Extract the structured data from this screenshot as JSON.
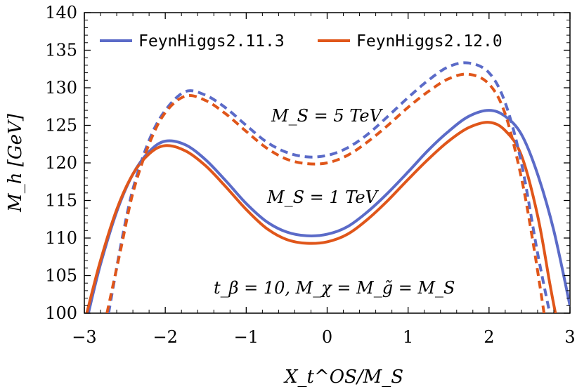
{
  "chart_data": {
    "type": "line",
    "xlabel": "X_t^OS/M_S",
    "ylabel": "M_h [GeV]",
    "xlim": [
      -3,
      3
    ],
    "ylim": [
      100,
      140
    ],
    "xticks": [
      "−3",
      "−2",
      "−1",
      "0",
      "1",
      "2",
      "3"
    ],
    "yticks": [
      "100",
      "105",
      "110",
      "115",
      "120",
      "125",
      "130",
      "135",
      "140"
    ],
    "legend_position": "top",
    "annotations": [
      "M_S = 5 TeV",
      "M_S = 1 TeV",
      "t_β = 10, M_χ = M_g̃ = M_S"
    ],
    "colors": {
      "feynhiggs_2_11_3": "#5b6bc8",
      "feynhiggs_2_12_0": "#e0561a"
    },
    "legend": [
      "FeynHiggs2.11.3",
      "FeynHiggs2.12.0"
    ],
    "x": [
      -3.0,
      -2.75,
      -2.5,
      -2.25,
      -2.0,
      -1.75,
      -1.5,
      -1.25,
      -1.0,
      -0.75,
      -0.5,
      -0.25,
      0.0,
      0.25,
      0.5,
      0.75,
      1.0,
      1.25,
      1.5,
      1.75,
      2.0,
      2.25,
      2.5,
      2.75,
      3.0
    ],
    "series": [
      {
        "name": "FeynHiggs2.11.3",
        "group": "M_S = 1 TeV",
        "style": "solid",
        "color": "#5b6bc8",
        "points": [
          [
            -2.95,
            100
          ],
          [
            -2.8,
            106.5
          ],
          [
            -2.6,
            113.5
          ],
          [
            -2.4,
            118.5
          ],
          [
            -2.2,
            121.5
          ],
          [
            -2.0,
            122.9
          ],
          [
            -1.75,
            122.4
          ],
          [
            -1.5,
            120.4
          ],
          [
            -1.25,
            117.6
          ],
          [
            -1.0,
            114.6
          ],
          [
            -0.75,
            112.2
          ],
          [
            -0.5,
            110.8
          ],
          [
            -0.25,
            110.3
          ],
          [
            0.0,
            110.5
          ],
          [
            0.25,
            111.5
          ],
          [
            0.5,
            113.5
          ],
          [
            0.75,
            116.0
          ],
          [
            1.0,
            118.8
          ],
          [
            1.25,
            121.7
          ],
          [
            1.5,
            124.2
          ],
          [
            1.75,
            126.2
          ],
          [
            2.0,
            127.0
          ],
          [
            2.2,
            126.2
          ],
          [
            2.4,
            123.8
          ],
          [
            2.6,
            118.5
          ],
          [
            2.8,
            111.0
          ],
          [
            3.0,
            101.0
          ]
        ]
      },
      {
        "name": "FeynHiggs2.12.0",
        "group": "M_S = 1 TeV",
        "style": "solid",
        "color": "#e0561a",
        "points": [
          [
            -2.97,
            100
          ],
          [
            -2.8,
            107.0
          ],
          [
            -2.6,
            113.8
          ],
          [
            -2.4,
            118.5
          ],
          [
            -2.2,
            121.2
          ],
          [
            -2.0,
            122.3
          ],
          [
            -1.75,
            121.6
          ],
          [
            -1.5,
            119.6
          ],
          [
            -1.25,
            116.8
          ],
          [
            -1.0,
            113.8
          ],
          [
            -0.75,
            111.3
          ],
          [
            -0.5,
            109.8
          ],
          [
            -0.25,
            109.3
          ],
          [
            0.0,
            109.5
          ],
          [
            0.25,
            110.5
          ],
          [
            0.5,
            112.5
          ],
          [
            0.75,
            115.0
          ],
          [
            1.0,
            117.8
          ],
          [
            1.25,
            120.5
          ],
          [
            1.5,
            122.9
          ],
          [
            1.75,
            124.7
          ],
          [
            2.0,
            125.4
          ],
          [
            2.2,
            124.3
          ],
          [
            2.4,
            121.0
          ],
          [
            2.6,
            113.0
          ],
          [
            2.75,
            104.0
          ],
          [
            2.82,
            100
          ]
        ]
      },
      {
        "name": "FeynHiggs2.11.3",
        "group": "M_S = 5 TeV",
        "style": "dashed",
        "color": "#5b6bc8",
        "points": [
          [
            -2.7,
            100
          ],
          [
            -2.55,
            109.0
          ],
          [
            -2.4,
            116.5
          ],
          [
            -2.2,
            123.0
          ],
          [
            -2.0,
            127.0
          ],
          [
            -1.75,
            129.5
          ],
          [
            -1.5,
            129.0
          ],
          [
            -1.25,
            127.3
          ],
          [
            -1.0,
            125.0
          ],
          [
            -0.75,
            122.8
          ],
          [
            -0.5,
            121.4
          ],
          [
            -0.25,
            120.8
          ],
          [
            0.0,
            121.0
          ],
          [
            0.25,
            122.0
          ],
          [
            0.5,
            123.8
          ],
          [
            0.75,
            126.2
          ],
          [
            1.0,
            128.7
          ],
          [
            1.25,
            131.0
          ],
          [
            1.5,
            132.8
          ],
          [
            1.75,
            133.3
          ],
          [
            2.0,
            132.0
          ],
          [
            2.2,
            128.0
          ],
          [
            2.4,
            120.0
          ],
          [
            2.6,
            108.0
          ],
          [
            2.75,
            100
          ]
        ]
      },
      {
        "name": "FeynHiggs2.12.0",
        "group": "M_S = 5 TeV",
        "style": "dashed",
        "color": "#e0561a",
        "points": [
          [
            -2.72,
            100
          ],
          [
            -2.55,
            108.5
          ],
          [
            -2.4,
            116.0
          ],
          [
            -2.2,
            122.5
          ],
          [
            -2.0,
            126.7
          ],
          [
            -1.75,
            128.9
          ],
          [
            -1.5,
            128.3
          ],
          [
            -1.25,
            126.5
          ],
          [
            -1.0,
            124.2
          ],
          [
            -0.75,
            122.0
          ],
          [
            -0.5,
            120.5
          ],
          [
            -0.25,
            119.9
          ],
          [
            0.0,
            120.0
          ],
          [
            0.25,
            121.0
          ],
          [
            0.5,
            122.8
          ],
          [
            0.75,
            125.0
          ],
          [
            1.0,
            127.4
          ],
          [
            1.25,
            129.5
          ],
          [
            1.5,
            131.2
          ],
          [
            1.75,
            131.8
          ],
          [
            2.0,
            130.5
          ],
          [
            2.2,
            126.5
          ],
          [
            2.4,
            118.0
          ],
          [
            2.55,
            109.0
          ],
          [
            2.68,
            100
          ]
        ]
      }
    ]
  }
}
